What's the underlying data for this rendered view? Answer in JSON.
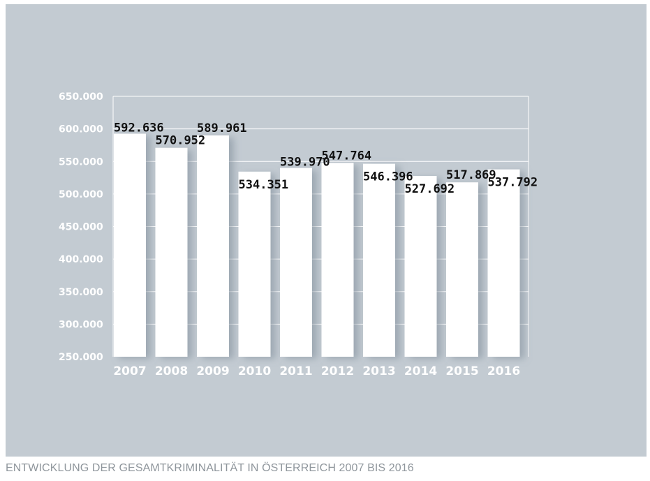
{
  "caption": "ENTWICKLUNG DER GESAMTKRIMINALITÄT IN ÖSTERREICH 2007 BIS 2016",
  "colors": {
    "panel": "#c3cbd2",
    "bar": "#ffffff",
    "grid": "#ffffff",
    "shadow": "#8e9aa6"
  },
  "chart_data": {
    "type": "bar",
    "title": "ENTWICKLUNG DER GESAMTKRIMINALITÄT IN ÖSTERREICH 2007 BIS 2016",
    "xlabel": "",
    "ylabel": "",
    "categories": [
      "2007",
      "2008",
      "2009",
      "2010",
      "2011",
      "2012",
      "2013",
      "2014",
      "2015",
      "2016"
    ],
    "values": [
      592636,
      570952,
      589961,
      534351,
      539970,
      547764,
      546396,
      527692,
      517869,
      537792
    ],
    "data_labels": [
      "592.636",
      "570.952",
      "589.961",
      "534.351",
      "539.970",
      "547.764",
      "546.396",
      "527.692",
      "517.869",
      "537.792"
    ],
    "ylim": [
      250000,
      650000
    ],
    "yticks": [
      250000,
      300000,
      350000,
      400000,
      450000,
      500000,
      550000,
      600000,
      650000
    ],
    "ytick_labels": [
      "250.000",
      "300.000",
      "350.000",
      "400.000",
      "450.000",
      "500.000",
      "550.000",
      "600.000",
      "650.000"
    ],
    "grid": true,
    "legend": "none"
  }
}
